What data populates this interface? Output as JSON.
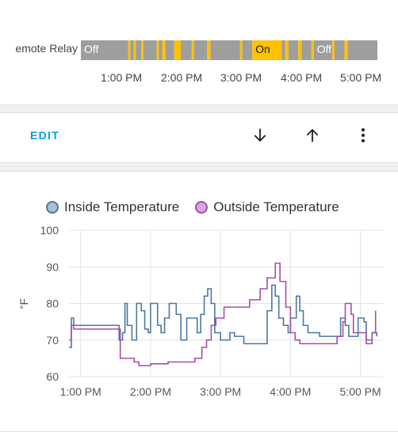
{
  "timeline": {
    "entity_label": "emote Relay",
    "segments": [
      {
        "state": "Off",
        "start": "12:55",
        "end": "13:38",
        "show_label": true
      },
      {
        "state": "On",
        "start": "13:38",
        "end": "13:40"
      },
      {
        "state": "Off",
        "start": "13:40",
        "end": "13:43"
      },
      {
        "state": "On",
        "start": "13:43",
        "end": "13:45"
      },
      {
        "state": "Off",
        "start": "13:45",
        "end": "13:50"
      },
      {
        "state": "On",
        "start": "13:50",
        "end": "13:52"
      },
      {
        "state": "Off",
        "start": "13:52",
        "end": "14:04"
      },
      {
        "state": "On",
        "start": "14:04",
        "end": "14:06"
      },
      {
        "state": "Off",
        "start": "14:06",
        "end": "14:09"
      },
      {
        "state": "On",
        "start": "14:09",
        "end": "14:12"
      },
      {
        "state": "Off",
        "start": "14:12",
        "end": "14:20"
      },
      {
        "state": "On",
        "start": "14:20",
        "end": "14:26"
      },
      {
        "state": "Off",
        "start": "14:26",
        "end": "14:36"
      },
      {
        "state": "On",
        "start": "14:36",
        "end": "14:38"
      },
      {
        "state": "Off",
        "start": "14:38",
        "end": "14:50"
      },
      {
        "state": "On",
        "start": "14:50",
        "end": "14:53"
      },
      {
        "state": "Off",
        "start": "14:53",
        "end": "15:20"
      },
      {
        "state": "On",
        "start": "15:20",
        "end": "15:22"
      },
      {
        "state": "Off",
        "start": "15:22",
        "end": "15:31"
      },
      {
        "state": "On",
        "start": "15:31",
        "end": "15:58",
        "show_label": true
      },
      {
        "state": "Off",
        "start": "15:58",
        "end": "16:01"
      },
      {
        "state": "On",
        "start": "16:01",
        "end": "16:04"
      },
      {
        "state": "Off",
        "start": "16:04",
        "end": "16:13"
      },
      {
        "state": "On",
        "start": "16:13",
        "end": "16:16"
      },
      {
        "state": "Off",
        "start": "16:16",
        "end": "16:25"
      },
      {
        "state": "On",
        "start": "16:25",
        "end": "16:27"
      },
      {
        "state": "Off",
        "start": "16:27",
        "end": "16:44",
        "show_label": true
      },
      {
        "state": "On",
        "start": "16:44",
        "end": "16:46"
      },
      {
        "state": "Off",
        "start": "16:46",
        "end": "16:55"
      },
      {
        "state": "On",
        "start": "16:55",
        "end": "16:58"
      },
      {
        "state": "Off",
        "start": "16:58",
        "end": "17:25"
      }
    ],
    "ticks": [
      "1:00 PM",
      "2:00 PM",
      "3:00 PM",
      "4:00 PM",
      "5:00 PM"
    ],
    "colors": {
      "on": "#ffc107",
      "off": "#9e9e9e"
    }
  },
  "actions": {
    "edit_label": "EDIT",
    "move_down_icon": "arrow-down-icon",
    "move_up_icon": "arrow-up-icon",
    "menu_icon": "dots-vertical-icon"
  },
  "chart_data": {
    "type": "line",
    "ylabel": "°F",
    "ylim": [
      60,
      100
    ],
    "y_ticks": [
      60,
      70,
      80,
      90,
      100
    ],
    "x_ticks": [
      "1:00 PM",
      "2:00 PM",
      "3:00 PM",
      "4:00 PM",
      "5:00 PM"
    ],
    "legend_position": "top",
    "grid": true,
    "series": [
      {
        "name": "Inside Temperature",
        "color": "#4c78a0",
        "fill": "#a8c0d6",
        "points": [
          [
            "12:50",
            68
          ],
          [
            "12:52",
            76
          ],
          [
            "12:54",
            74
          ],
          [
            "13:32",
            74
          ],
          [
            "13:33",
            70
          ],
          [
            "13:36",
            72
          ],
          [
            "13:38",
            80
          ],
          [
            "13:40",
            74
          ],
          [
            "13:44",
            70
          ],
          [
            "13:48",
            80
          ],
          [
            "13:52",
            78
          ],
          [
            "13:55",
            73
          ],
          [
            "13:58",
            72
          ],
          [
            "14:00",
            80
          ],
          [
            "14:04",
            80
          ],
          [
            "14:06",
            74
          ],
          [
            "14:09",
            72
          ],
          [
            "14:12",
            76
          ],
          [
            "14:16",
            80
          ],
          [
            "14:22",
            77
          ],
          [
            "14:26",
            70
          ],
          [
            "14:31",
            76
          ],
          [
            "14:38",
            76
          ],
          [
            "14:40",
            72
          ],
          [
            "14:43",
            77
          ],
          [
            "14:46",
            82
          ],
          [
            "14:49",
            84
          ],
          [
            "14:52",
            80
          ],
          [
            "14:55",
            72
          ],
          [
            "15:00",
            70
          ],
          [
            "15:08",
            72
          ],
          [
            "15:12",
            71
          ],
          [
            "15:20",
            69
          ],
          [
            "15:34",
            69
          ],
          [
            "15:40",
            78
          ],
          [
            "15:44",
            85
          ],
          [
            "15:47",
            82
          ],
          [
            "15:50",
            76
          ],
          [
            "15:54",
            74
          ],
          [
            "15:58",
            72
          ],
          [
            "16:00",
            76
          ],
          [
            "16:05",
            82
          ],
          [
            "16:08",
            78
          ],
          [
            "16:11",
            74
          ],
          [
            "16:15",
            72
          ],
          [
            "16:25",
            71
          ],
          [
            "16:40",
            71
          ],
          [
            "16:43",
            76
          ],
          [
            "16:47",
            74
          ],
          [
            "16:50",
            71
          ],
          [
            "16:58",
            76
          ],
          [
            "17:03",
            75
          ],
          [
            "17:05",
            70
          ],
          [
            "17:10",
            72
          ],
          [
            "17:14",
            71
          ]
        ]
      },
      {
        "name": "Outside Temperature",
        "color": "#a74ea6",
        "fill": "#d4a8dd",
        "points": [
          [
            "12:50",
            70
          ],
          [
            "12:52",
            74
          ],
          [
            "12:54",
            73
          ],
          [
            "13:32",
            73
          ],
          [
            "13:34",
            65
          ],
          [
            "13:46",
            64
          ],
          [
            "13:50",
            63
          ],
          [
            "13:58",
            63
          ],
          [
            "14:00",
            63.5
          ],
          [
            "14:15",
            64
          ],
          [
            "14:38",
            65
          ],
          [
            "14:44",
            68
          ],
          [
            "14:48",
            70
          ],
          [
            "14:52",
            74
          ],
          [
            "14:56",
            76
          ],
          [
            "15:03",
            79
          ],
          [
            "15:10",
            79
          ],
          [
            "15:25",
            81
          ],
          [
            "15:34",
            84
          ],
          [
            "15:40",
            87
          ],
          [
            "15:47",
            91
          ],
          [
            "15:51",
            86
          ],
          [
            "15:56",
            79
          ],
          [
            "16:00",
            72
          ],
          [
            "16:04",
            70
          ],
          [
            "16:08",
            69
          ],
          [
            "16:30",
            69
          ],
          [
            "16:40",
            71
          ],
          [
            "16:45",
            75
          ],
          [
            "16:47",
            80
          ],
          [
            "16:52",
            77
          ],
          [
            "16:54",
            72
          ],
          [
            "17:05",
            69
          ],
          [
            "17:10",
            72
          ],
          [
            "17:13",
            78
          ]
        ]
      }
    ]
  }
}
